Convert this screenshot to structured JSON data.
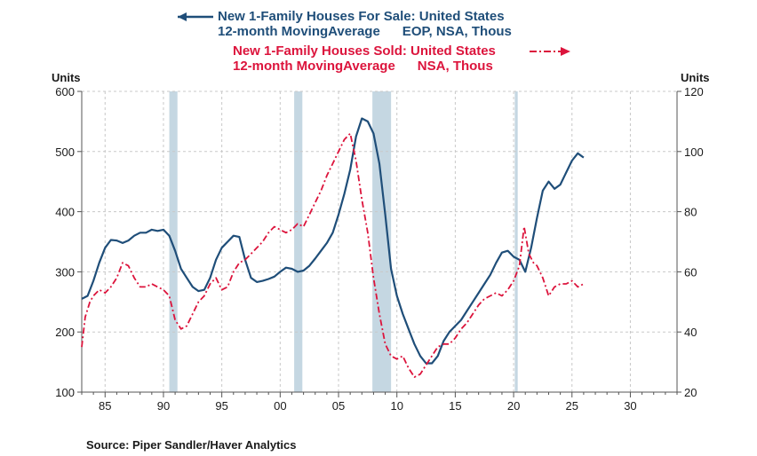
{
  "legend": {
    "series1_line1": "New 1-Family Houses For Sale: United States",
    "series1_line2": "12-month MovingAverage      EOP, NSA, Thous",
    "series2_line1": "New 1-Family Houses Sold: United States",
    "series2_line2": "12-month MovingAverage      NSA, Thous"
  },
  "source": "Source:   Piper Sandler/Haver Analytics",
  "colors": {
    "series1": "#1f4e79",
    "series2": "#dc143c",
    "recession": "#c5d7e2",
    "grid": "#c8c8c8",
    "axis": "#555555"
  },
  "chart_data": {
    "type": "line",
    "left_axis": {
      "label": "Units",
      "ylim": [
        100,
        600
      ],
      "ticks": [
        100,
        200,
        300,
        400,
        500,
        600
      ]
    },
    "right_axis": {
      "label": "Units",
      "ylim": [
        20,
        120
      ],
      "ticks": [
        20,
        40,
        60,
        80,
        100,
        120
      ]
    },
    "x_axis": {
      "xlim": [
        1983,
        2034
      ],
      "ticks": [
        1985,
        1990,
        1995,
        2000,
        2005,
        2010,
        2015,
        2020,
        2025,
        2030
      ],
      "tick_labels": [
        "85",
        "90",
        "95",
        "00",
        "05",
        "10",
        "15",
        "20",
        "25",
        "30"
      ]
    },
    "recessions": [
      [
        1990.5,
        1991.2
      ],
      [
        2001.2,
        2001.9
      ],
      [
        2007.9,
        2009.5
      ],
      [
        2020.1,
        2020.35
      ]
    ],
    "grid": true,
    "series": [
      {
        "axis": "left",
        "style": "solid",
        "points": [
          [
            1983.0,
            255
          ],
          [
            1983.5,
            260
          ],
          [
            1984.0,
            285
          ],
          [
            1984.5,
            315
          ],
          [
            1985.0,
            340
          ],
          [
            1985.5,
            353
          ],
          [
            1986.0,
            352
          ],
          [
            1986.5,
            348
          ],
          [
            1987.0,
            352
          ],
          [
            1987.5,
            360
          ],
          [
            1988.0,
            365
          ],
          [
            1988.5,
            365
          ],
          [
            1989.0,
            370
          ],
          [
            1989.5,
            368
          ],
          [
            1990.0,
            370
          ],
          [
            1990.5,
            360
          ],
          [
            1991.0,
            335
          ],
          [
            1991.5,
            305
          ],
          [
            1992.0,
            290
          ],
          [
            1992.5,
            275
          ],
          [
            1993.0,
            268
          ],
          [
            1993.5,
            270
          ],
          [
            1994.0,
            290
          ],
          [
            1994.5,
            320
          ],
          [
            1995.0,
            340
          ],
          [
            1995.5,
            350
          ],
          [
            1996.0,
            360
          ],
          [
            1996.5,
            358
          ],
          [
            1997.0,
            320
          ],
          [
            1997.5,
            290
          ],
          [
            1998.0,
            283
          ],
          [
            1998.5,
            285
          ],
          [
            1999.0,
            288
          ],
          [
            1999.5,
            292
          ],
          [
            2000.0,
            300
          ],
          [
            2000.5,
            307
          ],
          [
            2001.0,
            305
          ],
          [
            2001.5,
            300
          ],
          [
            2002.0,
            302
          ],
          [
            2002.5,
            310
          ],
          [
            2003.0,
            322
          ],
          [
            2003.5,
            335
          ],
          [
            2004.0,
            348
          ],
          [
            2004.5,
            365
          ],
          [
            2005.0,
            395
          ],
          [
            2005.5,
            430
          ],
          [
            2006.0,
            470
          ],
          [
            2006.5,
            525
          ],
          [
            2007.0,
            555
          ],
          [
            2007.5,
            550
          ],
          [
            2008.0,
            530
          ],
          [
            2008.5,
            480
          ],
          [
            2009.0,
            395
          ],
          [
            2009.5,
            305
          ],
          [
            2010.0,
            260
          ],
          [
            2010.5,
            230
          ],
          [
            2011.0,
            205
          ],
          [
            2011.5,
            180
          ],
          [
            2012.0,
            160
          ],
          [
            2012.5,
            148
          ],
          [
            2013.0,
            148
          ],
          [
            2013.5,
            160
          ],
          [
            2014.0,
            185
          ],
          [
            2014.5,
            200
          ],
          [
            2015.0,
            210
          ],
          [
            2015.5,
            220
          ],
          [
            2016.0,
            235
          ],
          [
            2016.5,
            250
          ],
          [
            2017.0,
            265
          ],
          [
            2017.5,
            280
          ],
          [
            2018.0,
            295
          ],
          [
            2018.5,
            315
          ],
          [
            2019.0,
            332
          ],
          [
            2019.5,
            335
          ],
          [
            2020.0,
            325
          ],
          [
            2020.5,
            320
          ],
          [
            2021.0,
            300
          ],
          [
            2021.5,
            340
          ],
          [
            2022.0,
            390
          ],
          [
            2022.5,
            435
          ],
          [
            2023.0,
            450
          ],
          [
            2023.5,
            438
          ],
          [
            2024.0,
            445
          ],
          [
            2024.5,
            465
          ],
          [
            2025.0,
            485
          ],
          [
            2025.5,
            497
          ],
          [
            2026.0,
            490
          ]
        ]
      },
      {
        "axis": "right",
        "style": "dashdot",
        "points": [
          [
            1983.0,
            35
          ],
          [
            1983.3,
            45
          ],
          [
            1983.7,
            50
          ],
          [
            1984.0,
            52
          ],
          [
            1984.5,
            54
          ],
          [
            1985.0,
            53
          ],
          [
            1985.5,
            55
          ],
          [
            1986.0,
            58
          ],
          [
            1986.5,
            63
          ],
          [
            1987.0,
            62
          ],
          [
            1987.5,
            58
          ],
          [
            1988.0,
            55
          ],
          [
            1988.5,
            55
          ],
          [
            1989.0,
            56
          ],
          [
            1989.5,
            55
          ],
          [
            1990.0,
            54
          ],
          [
            1990.5,
            52
          ],
          [
            1991.0,
            44
          ],
          [
            1991.5,
            41
          ],
          [
            1992.0,
            42
          ],
          [
            1992.5,
            46
          ],
          [
            1993.0,
            50
          ],
          [
            1993.5,
            52
          ],
          [
            1994.0,
            56
          ],
          [
            1994.5,
            58
          ],
          [
            1995.0,
            54
          ],
          [
            1995.5,
            55
          ],
          [
            1996.0,
            60
          ],
          [
            1996.5,
            63
          ],
          [
            1997.0,
            64
          ],
          [
            1997.5,
            66
          ],
          [
            1998.0,
            68
          ],
          [
            1998.5,
            70
          ],
          [
            1999.0,
            73
          ],
          [
            1999.5,
            75
          ],
          [
            2000.0,
            74
          ],
          [
            2000.5,
            73
          ],
          [
            2001.0,
            74
          ],
          [
            2001.5,
            76
          ],
          [
            2002.0,
            75
          ],
          [
            2002.5,
            79
          ],
          [
            2003.0,
            83
          ],
          [
            2003.5,
            87
          ],
          [
            2004.0,
            92
          ],
          [
            2004.5,
            96
          ],
          [
            2005.0,
            100
          ],
          [
            2005.5,
            104
          ],
          [
            2006.0,
            106
          ],
          [
            2006.5,
            97
          ],
          [
            2007.0,
            84
          ],
          [
            2007.5,
            73
          ],
          [
            2008.0,
            58
          ],
          [
            2008.5,
            46
          ],
          [
            2009.0,
            36
          ],
          [
            2009.5,
            32
          ],
          [
            2010.0,
            31
          ],
          [
            2010.5,
            32
          ],
          [
            2011.0,
            28
          ],
          [
            2011.5,
            25
          ],
          [
            2012.0,
            26
          ],
          [
            2012.5,
            29
          ],
          [
            2013.0,
            32
          ],
          [
            2013.5,
            35
          ],
          [
            2014.0,
            36
          ],
          [
            2014.5,
            36
          ],
          [
            2015.0,
            38
          ],
          [
            2015.5,
            41
          ],
          [
            2016.0,
            43
          ],
          [
            2016.5,
            46
          ],
          [
            2017.0,
            49
          ],
          [
            2017.5,
            51
          ],
          [
            2018.0,
            52
          ],
          [
            2018.5,
            53
          ],
          [
            2019.0,
            52
          ],
          [
            2019.5,
            54
          ],
          [
            2020.0,
            57
          ],
          [
            2020.5,
            62
          ],
          [
            2020.9,
            75
          ],
          [
            2021.3,
            66
          ],
          [
            2021.7,
            63
          ],
          [
            2022.0,
            62
          ],
          [
            2022.5,
            58
          ],
          [
            2023.0,
            52
          ],
          [
            2023.5,
            55
          ],
          [
            2024.0,
            56
          ],
          [
            2024.5,
            56
          ],
          [
            2025.0,
            57
          ],
          [
            2025.5,
            55
          ],
          [
            2026.0,
            56
          ]
        ]
      }
    ]
  }
}
